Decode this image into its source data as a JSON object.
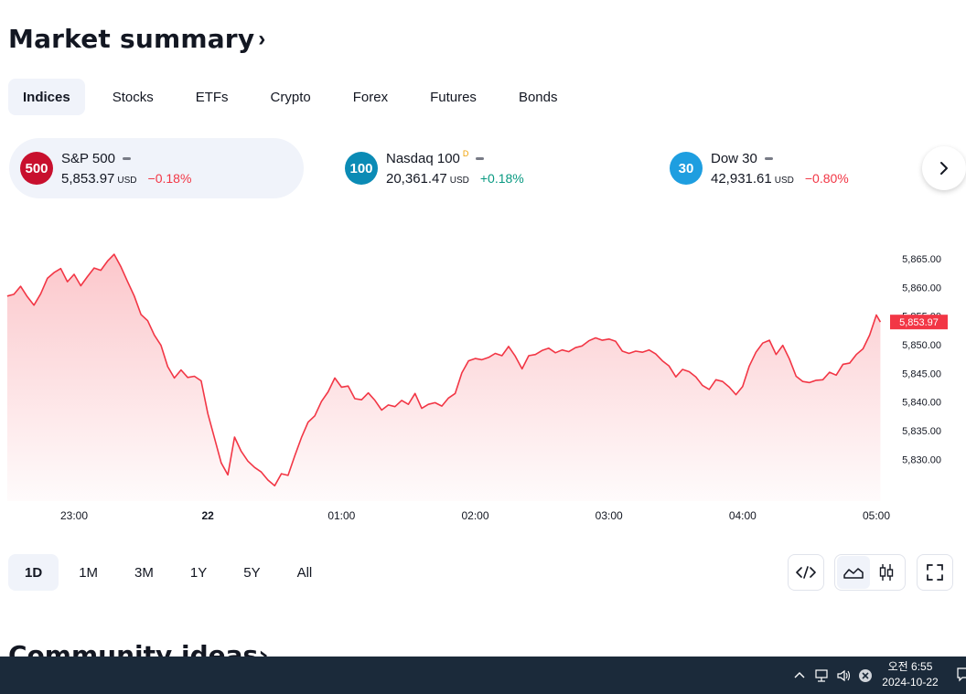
{
  "header": {
    "title": "Market summary",
    "chevron": "›"
  },
  "tabs": [
    {
      "label": "Indices",
      "active": true
    },
    {
      "label": "Stocks"
    },
    {
      "label": "ETFs"
    },
    {
      "label": "Crypto"
    },
    {
      "label": "Forex"
    },
    {
      "label": "Futures"
    },
    {
      "label": "Bonds"
    }
  ],
  "indices": [
    {
      "badge": "500",
      "badge_color": "#c8102e",
      "name": "S&P 500",
      "sup": "",
      "price": "5,853.97",
      "currency": "USD",
      "change": "−0.18%",
      "direction": "down"
    },
    {
      "badge": "100",
      "badge_color": "#0b8bb5",
      "name": "Nasdaq 100",
      "sup": "D",
      "price": "20,361.47",
      "currency": "USD",
      "change": "+0.18%",
      "direction": "up"
    },
    {
      "badge": "30",
      "badge_color": "#1e9ee0",
      "name": "Dow 30",
      "sup": "",
      "price": "42,931.61",
      "currency": "USD",
      "change": "−0.80%",
      "direction": "down"
    }
  ],
  "chart_data": {
    "type": "area",
    "series_color": "#f23645",
    "y_ticks": [
      5830,
      5835,
      5840,
      5845,
      5850,
      5855,
      5860,
      5865
    ],
    "y_tick_labels": [
      "5,830.00",
      "5,835.00",
      "5,840.00",
      "5,845.00",
      "5,850.00",
      "5,855.00",
      "5,860.00",
      "5,865.00"
    ],
    "ylim": [
      5824,
      5869
    ],
    "x_ticks": [
      "23:00",
      "22",
      "01:00",
      "02:00",
      "03:00",
      "04:00",
      "05:00"
    ],
    "x_tick_hours": [
      1,
      2,
      3,
      4,
      5,
      6,
      7
    ],
    "xlim": [
      0.5,
      7.05
    ],
    "last_price_label": "5,853.97",
    "points": [
      [
        0.5,
        5858.5
      ],
      [
        0.55,
        5858.8
      ],
      [
        0.6,
        5860.2
      ],
      [
        0.65,
        5858.4
      ],
      [
        0.7,
        5856.9
      ],
      [
        0.75,
        5858.9
      ],
      [
        0.8,
        5861.6
      ],
      [
        0.85,
        5862.6
      ],
      [
        0.9,
        5863.3
      ],
      [
        0.95,
        5861.0
      ],
      [
        1.0,
        5862.3
      ],
      [
        1.05,
        5860.3
      ],
      [
        1.1,
        5861.9
      ],
      [
        1.15,
        5863.4
      ],
      [
        1.2,
        5863.0
      ],
      [
        1.25,
        5864.6
      ],
      [
        1.3,
        5865.8
      ],
      [
        1.35,
        5863.6
      ],
      [
        1.4,
        5861.0
      ],
      [
        1.45,
        5858.5
      ],
      [
        1.5,
        5855.3
      ],
      [
        1.55,
        5854.2
      ],
      [
        1.6,
        5851.7
      ],
      [
        1.65,
        5849.9
      ],
      [
        1.7,
        5846.2
      ],
      [
        1.75,
        5844.2
      ],
      [
        1.8,
        5845.6
      ],
      [
        1.85,
        5844.3
      ],
      [
        1.9,
        5844.5
      ],
      [
        1.95,
        5843.7
      ],
      [
        2.0,
        5838.0
      ],
      [
        2.05,
        5833.7
      ],
      [
        2.1,
        5829.4
      ],
      [
        2.15,
        5827.3
      ],
      [
        2.2,
        5833.9
      ],
      [
        2.25,
        5831.4
      ],
      [
        2.3,
        5829.7
      ],
      [
        2.35,
        5828.6
      ],
      [
        2.4,
        5827.8
      ],
      [
        2.45,
        5826.4
      ],
      [
        2.5,
        5825.4
      ],
      [
        2.55,
        5827.5
      ],
      [
        2.6,
        5827.2
      ],
      [
        2.65,
        5830.6
      ],
      [
        2.7,
        5833.8
      ],
      [
        2.75,
        5836.5
      ],
      [
        2.8,
        5837.6
      ],
      [
        2.85,
        5840.1
      ],
      [
        2.9,
        5841.8
      ],
      [
        2.95,
        5844.2
      ],
      [
        3.0,
        5842.6
      ],
      [
        3.05,
        5842.8
      ],
      [
        3.1,
        5840.6
      ],
      [
        3.15,
        5840.4
      ],
      [
        3.2,
        5841.6
      ],
      [
        3.25,
        5840.3
      ],
      [
        3.3,
        5838.6
      ],
      [
        3.35,
        5839.5
      ],
      [
        3.4,
        5839.2
      ],
      [
        3.45,
        5840.3
      ],
      [
        3.5,
        5839.6
      ],
      [
        3.55,
        5841.5
      ],
      [
        3.6,
        5838.9
      ],
      [
        3.65,
        5839.6
      ],
      [
        3.7,
        5839.9
      ],
      [
        3.75,
        5839.3
      ],
      [
        3.8,
        5840.7
      ],
      [
        3.85,
        5841.5
      ],
      [
        3.9,
        5845.1
      ],
      [
        3.95,
        5847.2
      ],
      [
        4.0,
        5847.6
      ],
      [
        4.05,
        5847.4
      ],
      [
        4.1,
        5847.8
      ],
      [
        4.15,
        5848.5
      ],
      [
        4.2,
        5848.1
      ],
      [
        4.25,
        5849.7
      ],
      [
        4.3,
        5848.0
      ],
      [
        4.35,
        5845.8
      ],
      [
        4.4,
        5848.1
      ],
      [
        4.45,
        5848.3
      ],
      [
        4.5,
        5849.0
      ],
      [
        4.55,
        5849.4
      ],
      [
        4.6,
        5848.6
      ],
      [
        4.65,
        5849.1
      ],
      [
        4.7,
        5848.8
      ],
      [
        4.75,
        5849.5
      ],
      [
        4.8,
        5849.8
      ],
      [
        4.85,
        5850.7
      ],
      [
        4.9,
        5851.2
      ],
      [
        4.95,
        5850.8
      ],
      [
        5.0,
        5851.0
      ],
      [
        5.05,
        5850.6
      ],
      [
        5.1,
        5848.9
      ],
      [
        5.15,
        5848.5
      ],
      [
        5.2,
        5848.9
      ],
      [
        5.25,
        5848.7
      ],
      [
        5.3,
        5849.1
      ],
      [
        5.35,
        5848.4
      ],
      [
        5.4,
        5847.2
      ],
      [
        5.45,
        5846.3
      ],
      [
        5.5,
        5844.4
      ],
      [
        5.55,
        5845.7
      ],
      [
        5.6,
        5845.3
      ],
      [
        5.65,
        5844.4
      ],
      [
        5.7,
        5842.9
      ],
      [
        5.75,
        5842.2
      ],
      [
        5.8,
        5843.9
      ],
      [
        5.85,
        5843.6
      ],
      [
        5.9,
        5842.6
      ],
      [
        5.95,
        5841.3
      ],
      [
        6.0,
        5842.7
      ],
      [
        6.05,
        5846.3
      ],
      [
        6.1,
        5848.7
      ],
      [
        6.15,
        5850.3
      ],
      [
        6.2,
        5850.8
      ],
      [
        6.25,
        5848.3
      ],
      [
        6.3,
        5849.9
      ],
      [
        6.35,
        5847.5
      ],
      [
        6.4,
        5844.5
      ],
      [
        6.45,
        5843.6
      ],
      [
        6.5,
        5843.4
      ],
      [
        6.55,
        5843.8
      ],
      [
        6.6,
        5843.9
      ],
      [
        6.65,
        5845.2
      ],
      [
        6.7,
        5844.7
      ],
      [
        6.75,
        5846.6
      ],
      [
        6.8,
        5846.8
      ],
      [
        6.85,
        5848.3
      ],
      [
        6.9,
        5849.3
      ],
      [
        6.95,
        5851.7
      ],
      [
        7.0,
        5855.2
      ],
      [
        7.03,
        5853.97
      ]
    ]
  },
  "ranges": [
    {
      "label": "1D",
      "active": true
    },
    {
      "label": "1M"
    },
    {
      "label": "3M"
    },
    {
      "label": "1Y"
    },
    {
      "label": "5Y"
    },
    {
      "label": "All"
    }
  ],
  "next_section": {
    "title": "Community ideas",
    "chevron": "›"
  },
  "taskbar": {
    "time": "오전 6:55",
    "date": "2024-10-22"
  }
}
